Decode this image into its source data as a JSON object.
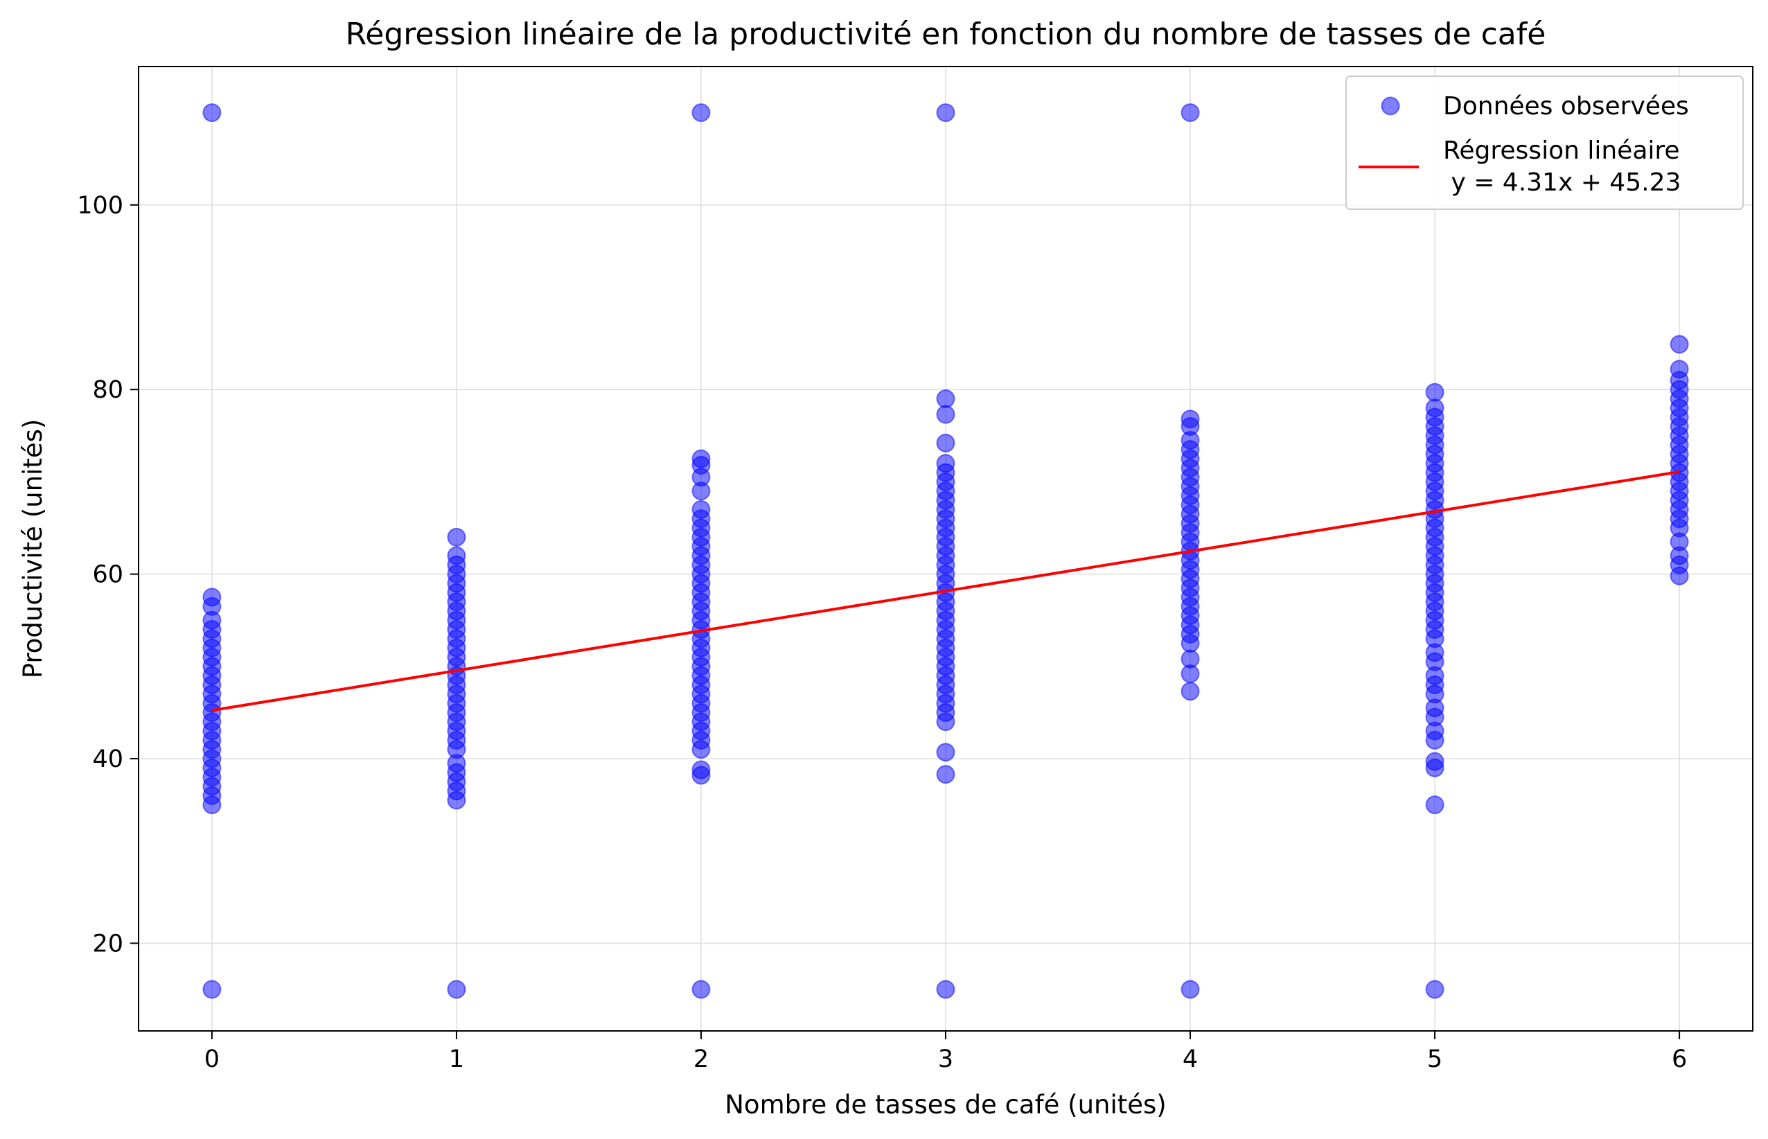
{
  "chart_data": {
    "type": "scatter",
    "title": "Régression linéaire de la productivité en fonction du nombre de tasses de café",
    "xlabel": "Nombre de tasses de café (unités)",
    "ylabel": "Productivité (unités)",
    "xlim": [
      -0.3,
      6.3
    ],
    "ylim": [
      10.5,
      115
    ],
    "xticks": [
      0,
      1,
      2,
      3,
      4,
      5,
      6
    ],
    "yticks": [
      20,
      40,
      60,
      80,
      100
    ],
    "grid": true,
    "legend_position": "top-right",
    "colors": {
      "points": "#0000ff",
      "line": "#ff0000",
      "grid": "#dddddd"
    },
    "series": [
      {
        "name": "Données observées",
        "type": "scatter",
        "points": [
          [
            0,
            15
          ],
          [
            0,
            110
          ],
          [
            0,
            35
          ],
          [
            0,
            36
          ],
          [
            0,
            37
          ],
          [
            0,
            38
          ],
          [
            0,
            39
          ],
          [
            0,
            40
          ],
          [
            0,
            41
          ],
          [
            0,
            42
          ],
          [
            0,
            43
          ],
          [
            0,
            44
          ],
          [
            0,
            45
          ],
          [
            0,
            46
          ],
          [
            0,
            47
          ],
          [
            0,
            48
          ],
          [
            0,
            49
          ],
          [
            0,
            50
          ],
          [
            0,
            51
          ],
          [
            0,
            52
          ],
          [
            0,
            53
          ],
          [
            0,
            54
          ],
          [
            0,
            55
          ],
          [
            0,
            56.5
          ],
          [
            0,
            57.5
          ],
          [
            1,
            15
          ],
          [
            1,
            35.5
          ],
          [
            1,
            36.5
          ],
          [
            1,
            37.5
          ],
          [
            1,
            38.5
          ],
          [
            1,
            39.5
          ],
          [
            1,
            41
          ],
          [
            1,
            42
          ],
          [
            1,
            43
          ],
          [
            1,
            44
          ],
          [
            1,
            45
          ],
          [
            1,
            46
          ],
          [
            1,
            47
          ],
          [
            1,
            48
          ],
          [
            1,
            49
          ],
          [
            1,
            50
          ],
          [
            1,
            51
          ],
          [
            1,
            52
          ],
          [
            1,
            53
          ],
          [
            1,
            54
          ],
          [
            1,
            55
          ],
          [
            1,
            56
          ],
          [
            1,
            57
          ],
          [
            1,
            58
          ],
          [
            1,
            59
          ],
          [
            1,
            60
          ],
          [
            1,
            61
          ],
          [
            1,
            62
          ],
          [
            1,
            64
          ],
          [
            2,
            15
          ],
          [
            2,
            110
          ],
          [
            2,
            38.2
          ],
          [
            2,
            38.8
          ],
          [
            2,
            41
          ],
          [
            2,
            42
          ],
          [
            2,
            43
          ],
          [
            2,
            44
          ],
          [
            2,
            45
          ],
          [
            2,
            46
          ],
          [
            2,
            47
          ],
          [
            2,
            48
          ],
          [
            2,
            49
          ],
          [
            2,
            50
          ],
          [
            2,
            51
          ],
          [
            2,
            52
          ],
          [
            2,
            53
          ],
          [
            2,
            54
          ],
          [
            2,
            55
          ],
          [
            2,
            56
          ],
          [
            2,
            57
          ],
          [
            2,
            58
          ],
          [
            2,
            59
          ],
          [
            2,
            60
          ],
          [
            2,
            61
          ],
          [
            2,
            62
          ],
          [
            2,
            63
          ],
          [
            2,
            64
          ],
          [
            2,
            65
          ],
          [
            2,
            66
          ],
          [
            2,
            67
          ],
          [
            2,
            69
          ],
          [
            2,
            70.5
          ],
          [
            2,
            71.8
          ],
          [
            2,
            72.5
          ],
          [
            3,
            15
          ],
          [
            3,
            110
          ],
          [
            3,
            38.3
          ],
          [
            3,
            40.7
          ],
          [
            3,
            44
          ],
          [
            3,
            45
          ],
          [
            3,
            46
          ],
          [
            3,
            47
          ],
          [
            3,
            48
          ],
          [
            3,
            49
          ],
          [
            3,
            50
          ],
          [
            3,
            51
          ],
          [
            3,
            52
          ],
          [
            3,
            53
          ],
          [
            3,
            54
          ],
          [
            3,
            55
          ],
          [
            3,
            56
          ],
          [
            3,
            57
          ],
          [
            3,
            58
          ],
          [
            3,
            59
          ],
          [
            3,
            60
          ],
          [
            3,
            61
          ],
          [
            3,
            62
          ],
          [
            3,
            63
          ],
          [
            3,
            64
          ],
          [
            3,
            65
          ],
          [
            3,
            66
          ],
          [
            3,
            67
          ],
          [
            3,
            68
          ],
          [
            3,
            69
          ],
          [
            3,
            70
          ],
          [
            3,
            71
          ],
          [
            3,
            72
          ],
          [
            3,
            74.2
          ],
          [
            3,
            77.3
          ],
          [
            3,
            79
          ],
          [
            4,
            15
          ],
          [
            4,
            110
          ],
          [
            4,
            47.3
          ],
          [
            4,
            49.2
          ],
          [
            4,
            50.8
          ],
          [
            4,
            52.5
          ],
          [
            4,
            53.5
          ],
          [
            4,
            54.5
          ],
          [
            4,
            55.5
          ],
          [
            4,
            56.5
          ],
          [
            4,
            57.5
          ],
          [
            4,
            58.5
          ],
          [
            4,
            59.5
          ],
          [
            4,
            60.5
          ],
          [
            4,
            61.5
          ],
          [
            4,
            62.5
          ],
          [
            4,
            63.5
          ],
          [
            4,
            64.5
          ],
          [
            4,
            65.5
          ],
          [
            4,
            66.5
          ],
          [
            4,
            67.5
          ],
          [
            4,
            68.5
          ],
          [
            4,
            69.5
          ],
          [
            4,
            70.5
          ],
          [
            4,
            71.5
          ],
          [
            4,
            72.5
          ],
          [
            4,
            73.5
          ],
          [
            4,
            74.5
          ],
          [
            4,
            76
          ],
          [
            4,
            76.8
          ],
          [
            5,
            15
          ],
          [
            5,
            35
          ],
          [
            5,
            39
          ],
          [
            5,
            39.7
          ],
          [
            5,
            42
          ],
          [
            5,
            43
          ],
          [
            5,
            44.5
          ],
          [
            5,
            45.5
          ],
          [
            5,
            47
          ],
          [
            5,
            48
          ],
          [
            5,
            49
          ],
          [
            5,
            50.5
          ],
          [
            5,
            51.5
          ],
          [
            5,
            53
          ],
          [
            5,
            54
          ],
          [
            5,
            55
          ],
          [
            5,
            56
          ],
          [
            5,
            57
          ],
          [
            5,
            58
          ],
          [
            5,
            59
          ],
          [
            5,
            60
          ],
          [
            5,
            61
          ],
          [
            5,
            62
          ],
          [
            5,
            63
          ],
          [
            5,
            64
          ],
          [
            5,
            65
          ],
          [
            5,
            66
          ],
          [
            5,
            67
          ],
          [
            5,
            68
          ],
          [
            5,
            69
          ],
          [
            5,
            70
          ],
          [
            5,
            71
          ],
          [
            5,
            72
          ],
          [
            5,
            73
          ],
          [
            5,
            74
          ],
          [
            5,
            75
          ],
          [
            5,
            76
          ],
          [
            5,
            77
          ],
          [
            5,
            78
          ],
          [
            5,
            79.7
          ],
          [
            6,
            59.8
          ],
          [
            6,
            61
          ],
          [
            6,
            62
          ],
          [
            6,
            63.5
          ],
          [
            6,
            65
          ],
          [
            6,
            66
          ],
          [
            6,
            67
          ],
          [
            6,
            68
          ],
          [
            6,
            69
          ],
          [
            6,
            70
          ],
          [
            6,
            71
          ],
          [
            6,
            72
          ],
          [
            6,
            73
          ],
          [
            6,
            74
          ],
          [
            6,
            75
          ],
          [
            6,
            76
          ],
          [
            6,
            77
          ],
          [
            6,
            78
          ],
          [
            6,
            79
          ],
          [
            6,
            80
          ],
          [
            6,
            81
          ],
          [
            6,
            82.2
          ],
          [
            6,
            84.9
          ]
        ]
      },
      {
        "name": "Régression linéaire\n y = 4.31x + 45.23",
        "type": "line",
        "slope": 4.31,
        "intercept": 45.23,
        "x_range": [
          0,
          6
        ]
      }
    ]
  }
}
